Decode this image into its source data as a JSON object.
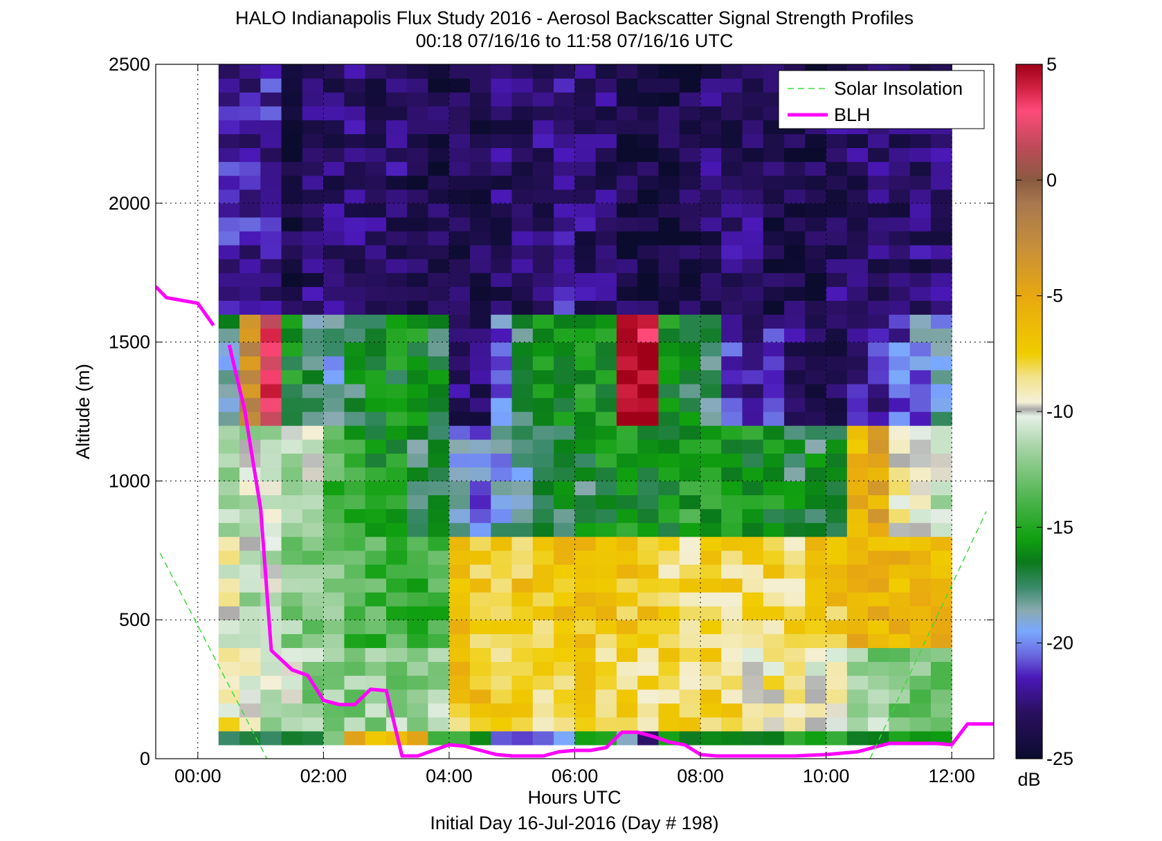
{
  "title": {
    "line1": "HALO Indianapolis Flux Study 2016 - Aerosol Backscatter Signal Strength Profiles",
    "line2": "00:18 07/16/16 to 11:58 07/16/16  UTC"
  },
  "xlabel": "Hours UTC",
  "subcaption": "Initial Day 16-Jul-2016 (Day # 198)",
  "ylabel": "Altitude (m)",
  "colorbar": {
    "unit": "dB",
    "range": [
      -25,
      5
    ],
    "ticks": [
      "5",
      "0",
      "-5",
      "-10",
      "-15",
      "-20",
      "-25"
    ],
    "tick_values": [
      5,
      0,
      -5,
      -10,
      -15,
      -20,
      -25
    ],
    "stops": [
      {
        "v": -25,
        "c": "#0b0b2e"
      },
      {
        "v": -23,
        "c": "#2a1060"
      },
      {
        "v": -21.5,
        "c": "#4a18b8"
      },
      {
        "v": -20.5,
        "c": "#6a6ae0"
      },
      {
        "v": -19.5,
        "c": "#7aa8ff"
      },
      {
        "v": -18.6,
        "c": "#8aaab0"
      },
      {
        "v": -17.6,
        "c": "#3a8a6a"
      },
      {
        "v": -16.5,
        "c": "#0a7a1a"
      },
      {
        "v": -15.5,
        "c": "#10a010"
      },
      {
        "v": -13.5,
        "c": "#58b858"
      },
      {
        "v": -11.5,
        "c": "#a8d4a8"
      },
      {
        "v": -10.2,
        "c": "#e6f0e6"
      },
      {
        "v": -9.9,
        "c": "#a8a8a8"
      },
      {
        "v": -9.6,
        "c": "#f4f0d8"
      },
      {
        "v": -8.5,
        "c": "#f2e28a"
      },
      {
        "v": -7.5,
        "c": "#f0cc00"
      },
      {
        "v": -5,
        "c": "#e8a810"
      },
      {
        "v": -3,
        "c": "#c89038"
      },
      {
        "v": -1,
        "c": "#a87850"
      },
      {
        "v": 0,
        "c": "#8a5a40"
      },
      {
        "v": 1.5,
        "c": "#c04a5a"
      },
      {
        "v": 3,
        "c": "#ff4a7a"
      },
      {
        "v": 4,
        "c": "#d02040"
      },
      {
        "v": 5,
        "c": "#a00018"
      }
    ]
  },
  "legend": {
    "placement": "top-right",
    "items": [
      {
        "label": "Solar Insolation",
        "color": "#3ddc3d",
        "style": "dashed"
      },
      {
        "label": "BLH",
        "color": "#ff00ff",
        "style": "solid"
      }
    ]
  },
  "chart_data": {
    "type": "heatmap",
    "title": "HALO Indianapolis Flux Study 2016 - Aerosol Backscatter Signal Strength Profiles",
    "xlabel": "Hours UTC",
    "ylabel": "Altitude (m)",
    "xlim": [
      -0.67,
      12.67
    ],
    "ylim": [
      0,
      2500
    ],
    "xticks": [
      0,
      2,
      4,
      6,
      8,
      10,
      12
    ],
    "xtick_labels": [
      "00:00",
      "02:00",
      "04:00",
      "06:00",
      "08:00",
      "10:00",
      "12:00"
    ],
    "yticks": [
      0,
      500,
      1000,
      1500,
      2000,
      2500
    ],
    "ytick_labels": [
      "0",
      "500",
      "1000",
      "1500",
      "2000",
      "2500"
    ],
    "grid": "dotted",
    "heatmap": {
      "x_start": 0.33,
      "x_end": 12.0,
      "columns": 35,
      "bins": [
        {
          "z0": 1600,
          "z1": 2500,
          "profile": [
            -22,
            -22,
            -22,
            -24,
            -23,
            -23,
            -23,
            -23,
            -23,
            -24,
            -24,
            -24,
            -24,
            -23,
            -23,
            -23,
            -22,
            -23,
            -23,
            -24,
            -24,
            -24,
            -24,
            -23,
            -23,
            -23,
            -24,
            -24,
            -24,
            -23,
            -23,
            -23,
            -23,
            -23,
            -23
          ]
        },
        {
          "z0": 1200,
          "z1": 1600,
          "profile": [
            -18,
            -3,
            3,
            -16,
            -18,
            -19,
            -17,
            -16,
            -16,
            -16,
            -17,
            -23,
            -23,
            -20,
            -17,
            -16,
            -16,
            -15,
            -16,
            4,
            4,
            -16,
            -17,
            -18,
            -21,
            -22,
            -22,
            -23,
            -24,
            -24,
            -22,
            -22,
            -21,
            -20,
            -19
          ]
        },
        {
          "z0": 800,
          "z1": 1200,
          "profile": [
            -12,
            -11,
            -11,
            -11,
            -11,
            -14,
            -15,
            -16,
            -16,
            -17,
            -17,
            -19,
            -20,
            -19,
            -18,
            -18,
            -17,
            -17,
            -16,
            -16,
            -16,
            -16,
            -15,
            -15,
            -16,
            -16,
            -16,
            -17,
            -17,
            -16,
            -6,
            -5,
            -9,
            -10,
            -11
          ]
        },
        {
          "z0": 400,
          "z1": 800,
          "profile": [
            -10,
            -11,
            -11,
            -12,
            -12,
            -13,
            -14,
            -14,
            -14,
            -15,
            -14,
            -7,
            -7,
            -7,
            -7,
            -7,
            -7,
            -7,
            -7,
            -7,
            -7,
            -8,
            -8,
            -8,
            -8,
            -8,
            -8,
            -8,
            -7,
            -7,
            -6,
            -6,
            -6,
            -6,
            -6
          ]
        },
        {
          "z0": 100,
          "z1": 400,
          "profile": [
            -9,
            -10,
            -11,
            -11,
            -12,
            -12,
            -12,
            -12,
            -12,
            -12,
            -12,
            -7,
            -7,
            -8,
            -8,
            -8,
            -8,
            -8,
            -8,
            -8,
            -8,
            -8,
            -8,
            -8,
            -8,
            -9,
            -9,
            -9,
            -10,
            -10,
            -11,
            -12,
            -13,
            -13,
            -13
          ]
        },
        {
          "z0": 50,
          "z1": 100,
          "profile": [
            -16,
            -16,
            -16,
            -16,
            -16,
            -11,
            -6,
            -6,
            -6,
            -6,
            -15,
            -15,
            -16,
            -20,
            -21,
            -21,
            -21,
            -16,
            -16,
            -20,
            -22,
            -16,
            -16,
            -16,
            -16,
            -16,
            -16,
            -16,
            -16,
            -16,
            -16,
            -16,
            -16,
            -16,
            -16
          ]
        }
      ]
    },
    "series": [
      {
        "name": "BLH",
        "color": "#ff00ff",
        "x": [
          -0.67,
          -0.5,
          -0.25,
          0.0,
          0.25,
          0.33,
          0.5,
          0.75,
          1.0,
          1.17,
          1.5,
          1.75,
          2.0,
          2.25,
          2.5,
          2.75,
          3.0,
          3.25,
          3.5,
          3.75,
          4.0,
          4.25,
          4.5,
          4.75,
          5.0,
          5.25,
          5.5,
          5.75,
          6.0,
          6.25,
          6.5,
          6.75,
          7.0,
          7.25,
          7.5,
          7.75,
          8.0,
          8.25,
          8.5,
          8.75,
          9.0,
          9.5,
          10.0,
          10.5,
          11.0,
          11.5,
          11.75,
          12.0,
          12.25,
          12.5,
          12.67
        ],
        "y": [
          1700,
          1660,
          1650,
          1640,
          1560,
          null,
          1490,
          1250,
          900,
          390,
          320,
          300,
          210,
          195,
          195,
          250,
          245,
          10,
          10,
          30,
          50,
          45,
          30,
          15,
          10,
          10,
          10,
          25,
          30,
          30,
          40,
          95,
          95,
          80,
          60,
          50,
          15,
          10,
          10,
          10,
          10,
          10,
          15,
          25,
          55,
          55,
          55,
          50,
          125,
          125,
          125
        ]
      },
      {
        "name": "Solar Insolation",
        "color": "#3ddc3d",
        "x": [
          -0.6,
          1.1
        ],
        "y": [
          740,
          0
        ],
        "x2": [
          10.7,
          12.55
        ],
        "y2": [
          0,
          890
        ]
      }
    ]
  }
}
